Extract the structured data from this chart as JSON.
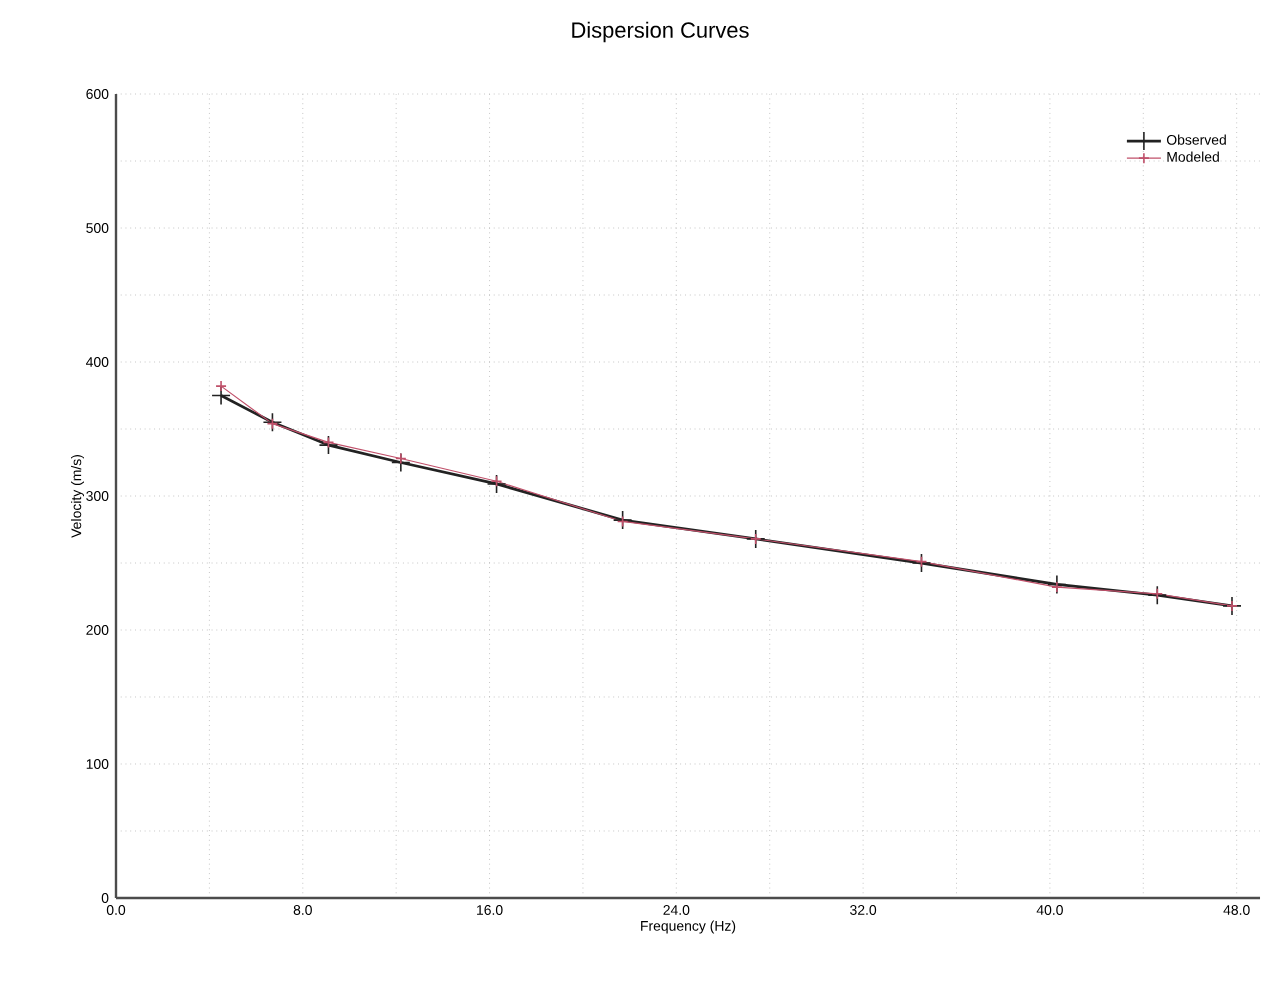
{
  "chart_data": {
    "type": "line",
    "title": "Dispersion Curves",
    "xlabel": "Frequency (Hz)",
    "ylabel": "Velocity (m/s)",
    "x": [
      4.5,
      6.7,
      9.1,
      12.2,
      16.3,
      21.7,
      27.4,
      34.5,
      40.3,
      44.6,
      47.8
    ],
    "series": [
      {
        "name": "Observed",
        "color": "#222222",
        "values": [
          375,
          355,
          338,
          325,
          309,
          282,
          268,
          250,
          234,
          226,
          218
        ]
      },
      {
        "name": "Modeled",
        "color": "#c0506a",
        "values": [
          382,
          354,
          340,
          328,
          311,
          281,
          268,
          251,
          232,
          227,
          218
        ]
      }
    ],
    "xlim": [
      0,
      49
    ],
    "ylim": [
      0,
      600
    ],
    "xticks": [
      {
        "value": 0,
        "label": "0.0"
      },
      {
        "value": 4,
        "label": null
      },
      {
        "value": 8,
        "label": "8.0"
      },
      {
        "value": 12,
        "label": null
      },
      {
        "value": 16,
        "label": "16.0"
      },
      {
        "value": 20,
        "label": null
      },
      {
        "value": 24,
        "label": "24.0"
      },
      {
        "value": 28,
        "label": null
      },
      {
        "value": 32,
        "label": "32.0"
      },
      {
        "value": 36,
        "label": null
      },
      {
        "value": 40,
        "label": "40.0"
      },
      {
        "value": 44,
        "label": null
      },
      {
        "value": 48,
        "label": "48.0"
      }
    ],
    "yticks": [
      0,
      {
        "value": 50,
        "label": null
      },
      100,
      {
        "value": 150,
        "label": null
      },
      200,
      {
        "value": 250,
        "label": null
      },
      300,
      {
        "value": 350,
        "label": null
      },
      400,
      {
        "value": 450,
        "label": null
      },
      500,
      {
        "value": 550,
        "label": null
      },
      600
    ],
    "grid": true,
    "legend": "top right",
    "marker": "cross",
    "line_style": "solid"
  }
}
